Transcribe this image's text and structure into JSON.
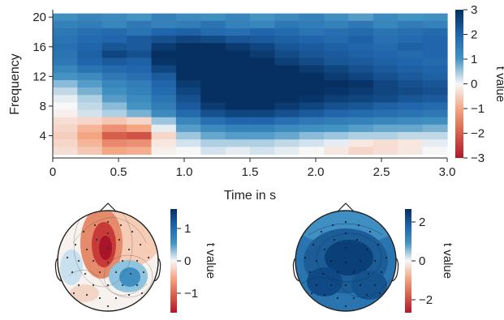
{
  "chart_data": [
    {
      "type": "heatmap",
      "xlabel": "Time in s",
      "ylabel": "Frequency",
      "x_ticks": [
        "0",
        "0.5",
        "1.0",
        "1.5",
        "2.0",
        "2.5",
        "3.0"
      ],
      "y_ticks": [
        "4",
        "8",
        "12",
        "16",
        "20"
      ],
      "xlim": [
        0,
        3.0
      ],
      "ylim": [
        1,
        21
      ],
      "colorbar": {
        "label": "t value",
        "ticks": [
          "3",
          "2",
          "1",
          "0",
          "-1",
          "-2",
          "-3"
        ],
        "range": [
          -3,
          3
        ]
      },
      "colormap": {
        "negative": "#b2182b",
        "zero": "#f7f7f7",
        "positive": "#053061"
      },
      "rows": [
        {
          "freq": 20,
          "values": [
            1.1,
            1.3,
            1.2,
            1.0,
            1.4,
            1.2,
            1.1,
            1.3,
            1.0,
            1.2,
            1.4,
            1.1,
            0.9,
            1.2,
            1.0,
            1.1
          ]
        },
        {
          "freq": 19,
          "values": [
            1.4,
            1.5,
            1.3,
            1.6,
            1.4,
            1.5,
            1.7,
            1.4,
            1.3,
            1.6,
            1.5,
            1.4,
            1.6,
            1.3,
            1.5,
            1.4
          ]
        },
        {
          "freq": 18,
          "values": [
            1.6,
            1.8,
            1.9,
            1.7,
            2.0,
            2.1,
            1.9,
            1.8,
            2.0,
            1.9,
            1.7,
            1.8,
            1.9,
            1.7,
            1.8,
            1.9
          ]
        },
        {
          "freq": 17,
          "values": [
            1.7,
            1.9,
            2.0,
            2.2,
            2.4,
            2.6,
            2.5,
            2.3,
            2.2,
            2.1,
            2.0,
            1.9,
            2.1,
            1.8,
            1.9,
            2.0
          ]
        },
        {
          "freq": 16,
          "values": [
            1.8,
            2.0,
            2.3,
            2.2,
            2.8,
            3.0,
            3.0,
            2.8,
            2.6,
            2.3,
            2.2,
            2.1,
            2.0,
            1.9,
            2.1,
            2.0
          ]
        },
        {
          "freq": 15,
          "values": [
            1.7,
            2.1,
            2.6,
            2.4,
            3.0,
            3.0,
            3.0,
            3.0,
            2.8,
            2.5,
            2.3,
            2.2,
            2.1,
            2.0,
            1.9,
            2.0
          ]
        },
        {
          "freq": 14,
          "values": [
            1.6,
            2.0,
            2.2,
            2.1,
            2.9,
            3.0,
            3.0,
            3.0,
            3.0,
            2.7,
            2.5,
            2.3,
            2.2,
            2.1,
            2.0,
            1.9
          ]
        },
        {
          "freq": 13,
          "values": [
            1.3,
            1.7,
            1.9,
            2.0,
            2.6,
            3.0,
            3.0,
            3.0,
            3.0,
            3.0,
            2.8,
            2.6,
            2.4,
            2.2,
            2.1,
            2.0
          ]
        },
        {
          "freq": 12,
          "values": [
            1.0,
            1.2,
            1.6,
            1.8,
            2.2,
            3.0,
            3.0,
            3.0,
            3.0,
            3.0,
            3.0,
            2.8,
            2.6,
            2.4,
            2.2,
            2.1
          ]
        },
        {
          "freq": 11,
          "values": [
            0.6,
            0.9,
            1.3,
            1.5,
            2.0,
            2.8,
            3.0,
            3.0,
            3.0,
            3.0,
            3.0,
            3.0,
            2.9,
            2.6,
            2.4,
            2.3
          ]
        },
        {
          "freq": 10,
          "values": [
            0.3,
            0.7,
            1.1,
            1.4,
            1.9,
            2.6,
            3.0,
            3.0,
            3.0,
            3.0,
            3.0,
            2.9,
            2.8,
            2.6,
            2.5,
            2.4
          ]
        },
        {
          "freq": 9,
          "values": [
            0.1,
            0.4,
            0.9,
            1.2,
            1.7,
            2.4,
            3.0,
            3.0,
            3.0,
            3.0,
            2.9,
            2.7,
            2.6,
            2.5,
            2.3,
            2.2
          ]
        },
        {
          "freq": 8,
          "values": [
            0.0,
            0.3,
            0.6,
            1.0,
            1.5,
            2.2,
            2.8,
            3.0,
            3.0,
            2.8,
            2.6,
            2.4,
            2.3,
            2.1,
            2.0,
            1.9
          ]
        },
        {
          "freq": 7,
          "values": [
            -0.1,
            0.2,
            0.4,
            0.7,
            1.2,
            1.9,
            2.4,
            2.6,
            2.6,
            2.4,
            2.2,
            2.0,
            1.9,
            1.8,
            1.7,
            1.6
          ]
        },
        {
          "freq": 6,
          "values": [
            -0.3,
            -0.4,
            -0.6,
            -0.4,
            0.5,
            1.3,
            1.8,
            2.0,
            2.0,
            1.8,
            1.6,
            1.5,
            1.4,
            1.3,
            1.2,
            1.1
          ]
        },
        {
          "freq": 5,
          "values": [
            -0.4,
            -0.8,
            -1.3,
            -1.0,
            0.1,
            0.9,
            1.2,
            1.4,
            1.4,
            1.2,
            1.1,
            1.0,
            0.9,
            0.8,
            0.8,
            0.7
          ]
        },
        {
          "freq": 4,
          "values": [
            -0.5,
            -1.0,
            -2.0,
            -2.2,
            -0.4,
            0.5,
            0.8,
            0.9,
            0.9,
            0.8,
            0.6,
            0.5,
            0.4,
            0.4,
            0.3,
            0.3
          ]
        },
        {
          "freq": 3,
          "values": [
            -0.4,
            -0.8,
            -1.4,
            -1.3,
            -0.2,
            0.2,
            0.4,
            0.4,
            0.4,
            0.3,
            0.2,
            0.1,
            -0.2,
            -0.3,
            -0.2,
            0.1
          ]
        },
        {
          "freq": 2,
          "values": [
            -0.3,
            -0.6,
            -1.0,
            -0.9,
            -0.1,
            0.0,
            0.2,
            0.1,
            0.2,
            0.1,
            0.0,
            -0.2,
            -0.4,
            -0.3,
            -0.2,
            0.0
          ]
        }
      ]
    },
    {
      "type": "topomap",
      "position": "bottom-left",
      "colorbar": {
        "label": "t value",
        "ticks": [
          "1",
          "0",
          "-1"
        ],
        "range": [
          -1.5,
          1.5
        ]
      },
      "features": [
        {
          "label": "frontal-central negative",
          "value": -1.4
        },
        {
          "label": "right-central positive",
          "value": 1.2
        },
        {
          "label": "left-lateral positive",
          "value": 0.5
        },
        {
          "label": "left-posterior negative",
          "value": -0.6
        }
      ]
    },
    {
      "type": "topomap",
      "position": "bottom-right",
      "colorbar": {
        "label": "t value",
        "ticks": [
          "2",
          "0",
          "-2"
        ],
        "range": [
          -2.5,
          2.5
        ]
      },
      "features": [
        {
          "label": "widespread positive",
          "value": 2.2
        },
        {
          "label": "central maximum",
          "value": 2.5
        }
      ]
    }
  ]
}
